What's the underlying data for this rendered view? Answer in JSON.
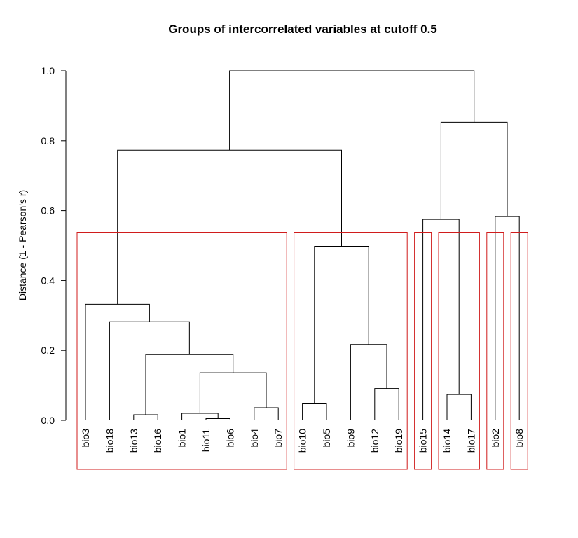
{
  "chart_data": {
    "type": "dendrogram",
    "title": "Groups of intercorrelated variables at cutoff 0.5",
    "ylabel": "Distance (1 - Pearson's r)",
    "xlabel": "",
    "ylim": [
      0,
      1
    ],
    "yticks": [
      0.0,
      0.2,
      0.4,
      0.6,
      0.8,
      1.0
    ],
    "ytick_labels": [
      "0.0",
      "0.2",
      "0.4",
      "0.6",
      "0.8",
      "1.0"
    ],
    "cutoff": 0.5,
    "leaves": [
      "bio3",
      "bio18",
      "bio13",
      "bio16",
      "bio1",
      "bio11",
      "bio6",
      "bio4",
      "bio7",
      "bio10",
      "bio5",
      "bio9",
      "bio12",
      "bio19",
      "bio15",
      "bio14",
      "bio17",
      "bio2",
      "bio8"
    ],
    "merges": [
      {
        "a": "L:bio13",
        "b": "L:bio16",
        "h": 0.016
      },
      {
        "a": "L:bio11",
        "b": "L:bio6",
        "h": 0.005
      },
      {
        "a": "L:bio1",
        "b": "M:1",
        "h": 0.02
      },
      {
        "a": "L:bio4",
        "b": "L:bio7",
        "h": 0.036
      },
      {
        "a": "M:2",
        "b": "M:3",
        "h": 0.136
      },
      {
        "a": "M:0",
        "b": "M:4",
        "h": 0.188
      },
      {
        "a": "L:bio18",
        "b": "M:5",
        "h": 0.282
      },
      {
        "a": "L:bio3",
        "b": "M:6",
        "h": 0.332
      },
      {
        "a": "L:bio10",
        "b": "L:bio5",
        "h": 0.047
      },
      {
        "a": "L:bio12",
        "b": "L:bio19",
        "h": 0.091
      },
      {
        "a": "L:bio9",
        "b": "M:9",
        "h": 0.217
      },
      {
        "a": "M:8",
        "b": "M:10",
        "h": 0.498
      },
      {
        "a": "M:7",
        "b": "M:11",
        "h": 0.773
      },
      {
        "a": "L:bio14",
        "b": "L:bio17",
        "h": 0.074
      },
      {
        "a": "L:bio15",
        "b": "M:13",
        "h": 0.575
      },
      {
        "a": "L:bio2",
        "b": "L:bio8",
        "h": 0.583
      },
      {
        "a": "M:14",
        "b": "M:15",
        "h": 0.853
      },
      {
        "a": "M:12",
        "b": "M:16",
        "h": 1.0
      }
    ],
    "groups": [
      [
        "bio3",
        "bio18",
        "bio13",
        "bio16",
        "bio1",
        "bio11",
        "bio6",
        "bio4",
        "bio7"
      ],
      [
        "bio10",
        "bio5",
        "bio9",
        "bio12",
        "bio19"
      ],
      [
        "bio15"
      ],
      [
        "bio14",
        "bio17"
      ],
      [
        "bio2"
      ],
      [
        "bio8"
      ]
    ],
    "line_color": "#000000",
    "group_box_color": "#d01c1c"
  }
}
